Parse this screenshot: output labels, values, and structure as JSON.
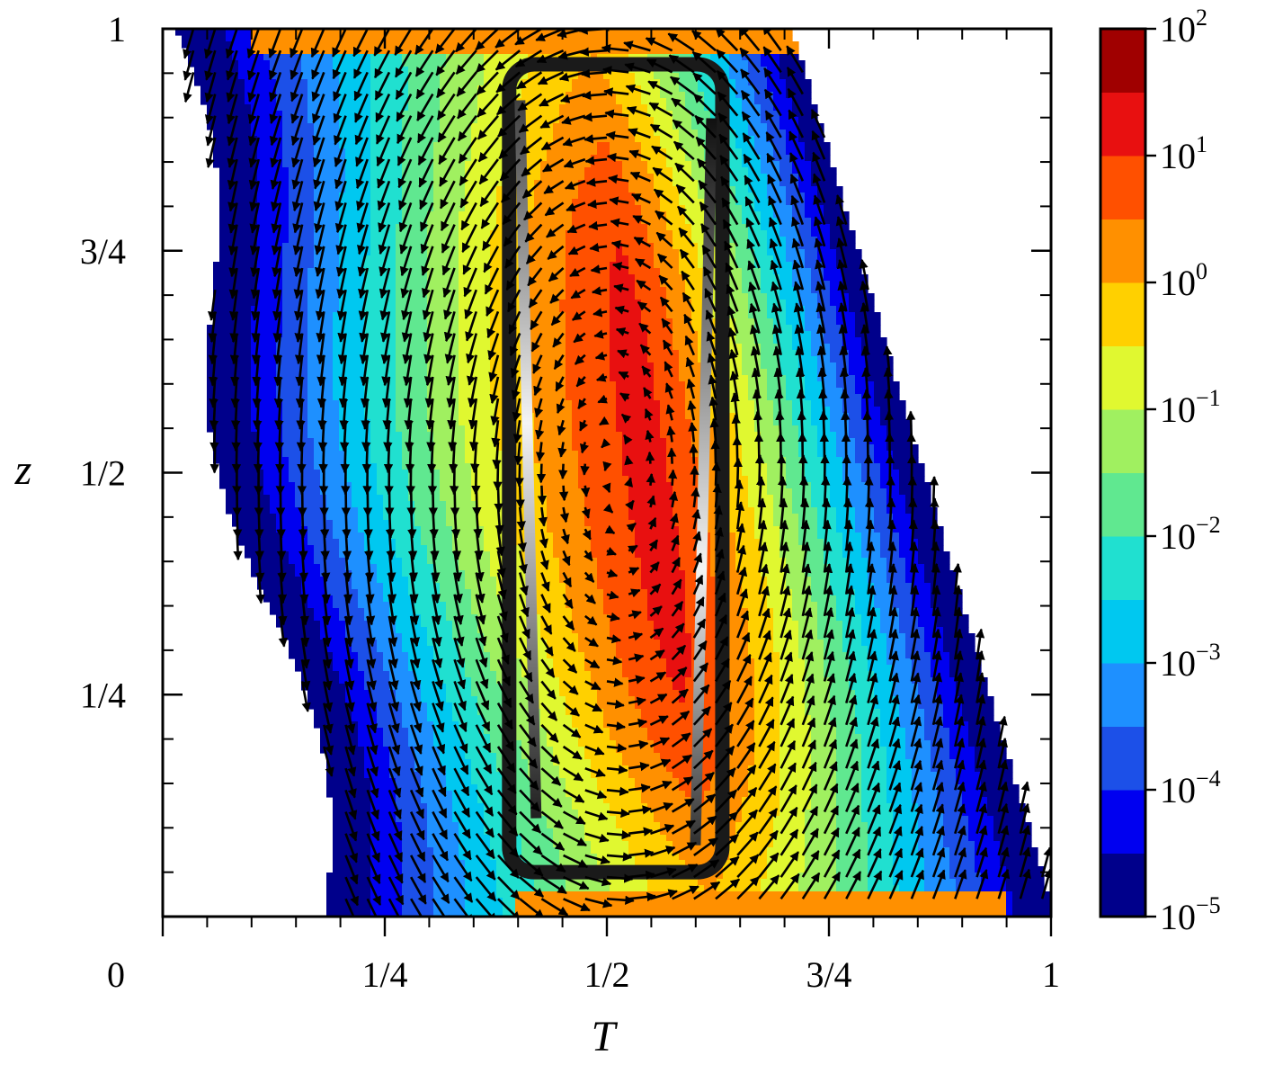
{
  "chart_data": {
    "type": "heatmap",
    "subtype": "filled-contour-with-quiver",
    "xlabel": "T",
    "ylabel": "z",
    "xlim": [
      0,
      1
    ],
    "ylim": [
      0,
      1
    ],
    "x_ticks": [
      {
        "value": 0,
        "label": "0"
      },
      {
        "value": 0.25,
        "label": "1/4"
      },
      {
        "value": 0.5,
        "label": "1/2"
      },
      {
        "value": 0.75,
        "label": "3/4"
      },
      {
        "value": 1,
        "label": "1"
      }
    ],
    "y_ticks": [
      {
        "value": 0.25,
        "label": "1/4"
      },
      {
        "value": 0.5,
        "label": "1/2"
      },
      {
        "value": 0.75,
        "label": "3/4"
      },
      {
        "value": 1,
        "label": "1"
      }
    ],
    "colorbar": {
      "scale": "log",
      "range": [
        1e-05,
        100
      ],
      "levels": [
        {
          "value": 1e-05,
          "color": "#00008b"
        },
        {
          "value": 3.16e-05,
          "color": "#0000f0"
        },
        {
          "value": 0.0001,
          "color": "#1c50e8"
        },
        {
          "value": 0.000316,
          "color": "#1e90ff"
        },
        {
          "value": 0.001,
          "color": "#00c8f0"
        },
        {
          "value": 0.00316,
          "color": "#20e0d0"
        },
        {
          "value": 0.01,
          "color": "#60e890"
        },
        {
          "value": 0.0316,
          "color": "#a0f060"
        },
        {
          "value": 0.1,
          "color": "#e0f830"
        },
        {
          "value": 0.316,
          "color": "#ffd000"
        },
        {
          "value": 1,
          "color": "#ff9000"
        },
        {
          "value": 3.16,
          "color": "#ff5000"
        },
        {
          "value": 10,
          "color": "#e81010"
        },
        {
          "value": 31.6,
          "color": "#a00000"
        }
      ],
      "tick_labels": [
        {
          "base": "10",
          "exp": "2"
        },
        {
          "base": "10",
          "exp": "1"
        },
        {
          "base": "10",
          "exp": "0"
        },
        {
          "base": "10",
          "exp": "−1"
        },
        {
          "base": "10",
          "exp": "−2"
        },
        {
          "base": "10",
          "exp": "−3"
        },
        {
          "base": "10",
          "exp": "−4"
        },
        {
          "base": "10",
          "exp": "−5"
        }
      ]
    },
    "field": {
      "description_shape": "sheared band from T≈0.02 at z=1 to T≈0.99 at z≈0.01; peak density near T≈0.5, z≈0.5",
      "peak_log10": 1.2,
      "band_center_top": 0.48,
      "band_center_bottom": 0.62,
      "edge_floor_log10": -5
    },
    "closed_orbit": {
      "T_range": [
        0.39,
        0.63
      ],
      "z_range": [
        0.05,
        0.96
      ],
      "style": "grayscale gradient tube"
    },
    "vector_field": {
      "type": "quiver",
      "description": "circulation about orbit center; flow upward on the low-T side, downward on the high-T side",
      "center": [
        0.51,
        0.5
      ]
    }
  }
}
